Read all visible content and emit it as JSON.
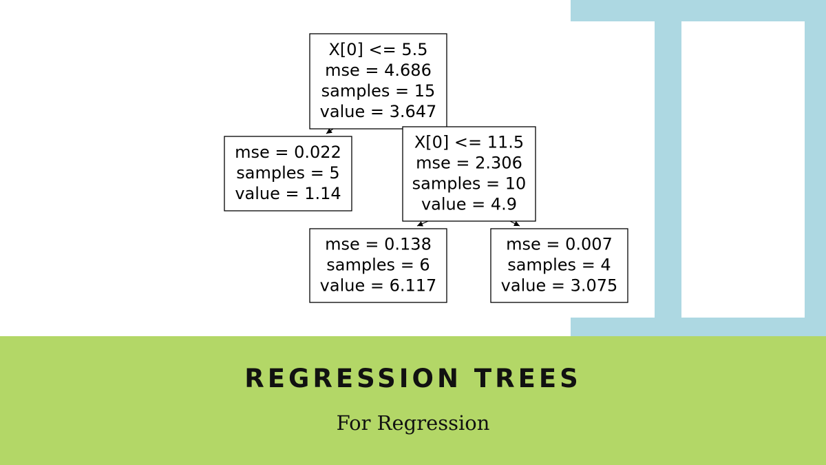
{
  "tree": {
    "nodes": [
      {
        "id": "root",
        "lines": [
          "X[0] <= 5.5",
          "mse = 4.686",
          "samples = 15",
          "value = 3.647"
        ]
      },
      {
        "id": "left",
        "lines": [
          "mse = 0.022",
          "samples = 5",
          "value = 1.14"
        ]
      },
      {
        "id": "right",
        "lines": [
          "X[0] <= 11.5",
          "mse = 2.306",
          "samples = 10",
          "value = 4.9"
        ]
      },
      {
        "id": "right-left",
        "lines": [
          "mse = 0.138",
          "samples = 6",
          "value = 6.117"
        ]
      },
      {
        "id": "right-right",
        "lines": [
          "mse = 0.007",
          "samples = 4",
          "value = 3.075"
        ]
      }
    ],
    "edges": [
      {
        "from": "root",
        "to": "left"
      },
      {
        "from": "root",
        "to": "right"
      },
      {
        "from": "right",
        "to": "right-left"
      },
      {
        "from": "right",
        "to": "right-right"
      }
    ]
  },
  "banner": {
    "title": "REGRESSION TREES",
    "subtitle": "For Regression"
  },
  "colors": {
    "banner": "#b3d767",
    "frame": "#add8e2"
  }
}
